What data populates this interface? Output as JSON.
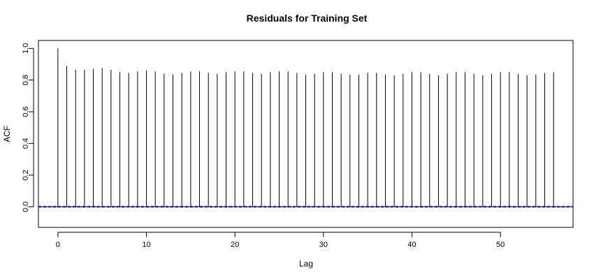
{
  "chart_data": {
    "type": "bar",
    "title": "Residuals for Training Set",
    "xlabel": "Lag",
    "ylabel": "ACF",
    "xlim": [
      -2.2,
      58.2
    ],
    "ylim": [
      -0.13,
      1.05
    ],
    "xticks": [
      0,
      10,
      20,
      30,
      40,
      50
    ],
    "yticks": [
      0.0,
      0.2,
      0.4,
      0.6,
      0.8,
      1.0
    ],
    "ytick_labels": [
      "0.0",
      "0.2",
      "0.4",
      "0.6",
      "0.8",
      "1.0"
    ],
    "grid": false,
    "legend": "none",
    "lags": [
      0,
      1,
      2,
      3,
      4,
      5,
      6,
      7,
      8,
      9,
      10,
      11,
      12,
      13,
      14,
      15,
      16,
      17,
      18,
      19,
      20,
      21,
      22,
      23,
      24,
      25,
      26,
      27,
      28,
      29,
      30,
      31,
      32,
      33,
      34,
      35,
      36,
      37,
      38,
      39,
      40,
      41,
      42,
      43,
      44,
      45,
      46,
      47,
      48,
      49,
      50,
      51,
      52,
      53,
      54,
      55,
      56
    ],
    "acf": [
      1.0,
      0.89,
      0.865,
      0.865,
      0.87,
      0.875,
      0.865,
      0.85,
      0.845,
      0.855,
      0.86,
      0.855,
      0.84,
      0.835,
      0.845,
      0.855,
      0.855,
      0.845,
      0.84,
      0.85,
      0.855,
      0.855,
      0.845,
      0.84,
      0.85,
      0.855,
      0.855,
      0.845,
      0.835,
      0.84,
      0.85,
      0.85,
      0.84,
      0.835,
      0.835,
      0.845,
      0.845,
      0.835,
      0.83,
      0.84,
      0.85,
      0.85,
      0.84,
      0.83,
      0.84,
      0.85,
      0.85,
      0.84,
      0.83,
      0.84,
      0.85,
      0.85,
      0.84,
      0.83,
      0.835,
      0.845,
      0.85
    ],
    "confidence_bound": 0.002,
    "colors": {
      "bars": "#000000",
      "zero_line": "#000000",
      "confidence": "#0000ff",
      "frame": "#000000"
    }
  }
}
